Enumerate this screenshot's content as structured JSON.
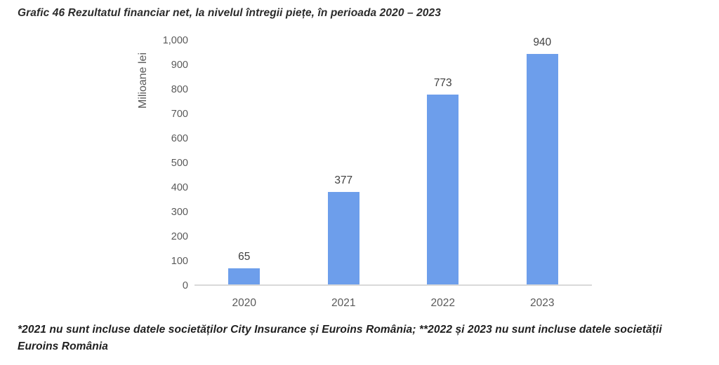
{
  "title": "Grafic 46 Rezultatul financiar net, la nivelul întregii piețe, în perioada 2020 – 2023",
  "chart_data": {
    "type": "bar",
    "title": "Grafic 46 Rezultatul financiar net, la nivelul întregii piețe, în perioada 2020 – 2023",
    "categories": [
      "2020",
      "2021",
      "2022",
      "2023"
    ],
    "values": [
      65,
      377,
      773,
      940
    ],
    "data_labels": [
      "65",
      "377",
      "773",
      "940"
    ],
    "xlabel": "",
    "ylabel": "Milioane lei",
    "ylim": [
      0,
      1000
    ],
    "ytick_labels": [
      "0",
      "100",
      "200",
      "300",
      "400",
      "500",
      "600",
      "700",
      "800",
      "900",
      "1,000"
    ],
    "grid": false,
    "legend": "none",
    "bar_color": "#6d9eeb",
    "axis_line_color": "#d9d9d9",
    "tick_color": "#595959",
    "data_label_color": "#404040"
  },
  "footnote": {
    "line1": "*2021 nu sunt incluse datele societăților City Insurance și Euroins România; **2022 și 2023 nu sunt incluse datele societății",
    "line2": "Euroins România"
  }
}
